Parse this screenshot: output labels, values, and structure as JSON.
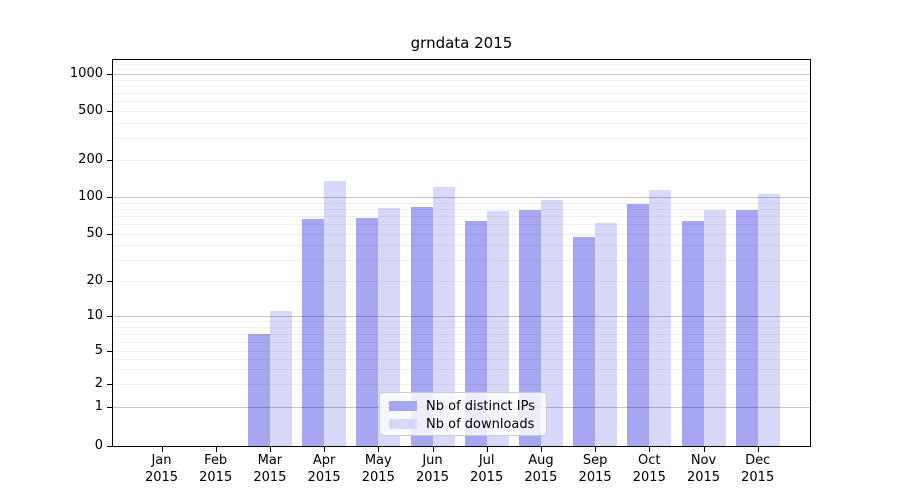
{
  "chart_data": {
    "type": "bar",
    "title": "grndata 2015",
    "categories": [
      "Jan 2015",
      "Feb 2015",
      "Mar 2015",
      "Apr 2015",
      "May 2015",
      "Jun 2015",
      "Jul 2015",
      "Aug 2015",
      "Sep 2015",
      "Oct 2015",
      "Nov 2015",
      "Dec 2015"
    ],
    "series": [
      {
        "name": "Nb of distinct IPs",
        "color": "#a6a6f2",
        "values": [
          0,
          0,
          7,
          66,
          68,
          83,
          64,
          79,
          47,
          88,
          64,
          78
        ]
      },
      {
        "name": "Nb of downloads",
        "color": "#d8d8f8",
        "values": [
          0,
          0,
          11,
          135,
          82,
          120,
          77,
          95,
          62,
          115,
          79,
          106
        ]
      }
    ],
    "yscale": "symlog",
    "y_ticks": [
      0,
      1,
      2,
      5,
      10,
      20,
      50,
      100,
      200,
      500,
      1000
    ],
    "ylim": [
      0,
      1270
    ],
    "xlabel": "",
    "ylabel": "",
    "grid": "horizontal",
    "legend_position": "lower-center"
  }
}
